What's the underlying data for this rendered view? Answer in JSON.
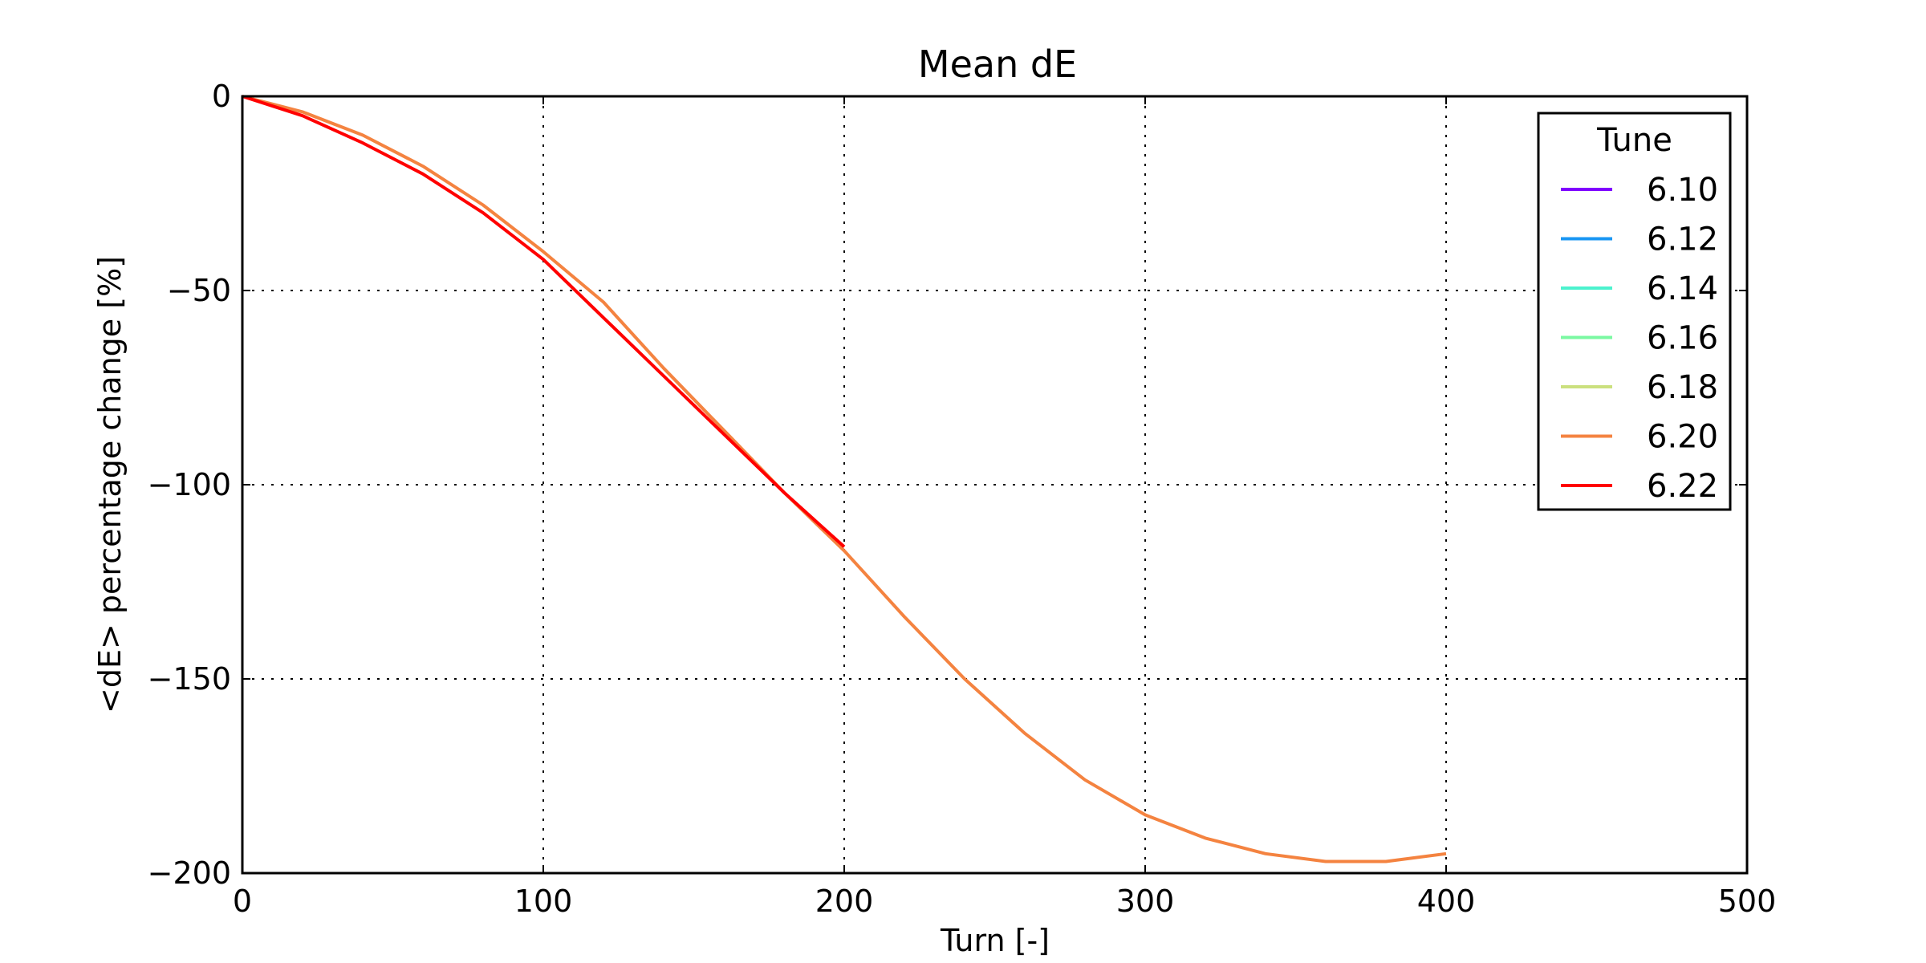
{
  "chart_data": {
    "type": "line",
    "title": "Mean dE",
    "xlabel": "Turn [-]",
    "ylabel": "<dE> percentage change [%]",
    "xlim": [
      0,
      500
    ],
    "ylim": [
      -200,
      0
    ],
    "xticks": [
      0,
      100,
      200,
      300,
      400,
      500
    ],
    "yticks": [
      0,
      -50,
      -100,
      -150,
      -200
    ],
    "xtick_labels": [
      "0",
      "100",
      "200",
      "300",
      "400",
      "500"
    ],
    "ytick_labels": [
      "0",
      "−50",
      "−100",
      "−150",
      "−200"
    ],
    "grid": true,
    "legend": {
      "title": "Tune",
      "placement": "top-right"
    },
    "series": [
      {
        "name": "6.10",
        "color": "#8000ff",
        "x": [],
        "y": []
      },
      {
        "name": "6.12",
        "color": "#1996f3",
        "x": [],
        "y": []
      },
      {
        "name": "6.14",
        "color": "#4cf2ce",
        "x": [],
        "y": []
      },
      {
        "name": "6.16",
        "color": "#7bf8a2",
        "x": [],
        "y": []
      },
      {
        "name": "6.18",
        "color": "#cbe07e",
        "x": [],
        "y": []
      },
      {
        "name": "6.20",
        "color": "#f48340",
        "x": [
          0,
          20,
          40,
          60,
          80,
          100,
          120,
          140,
          160,
          180,
          200,
          220,
          240,
          260,
          280,
          300,
          320,
          340,
          360,
          380,
          400
        ],
        "y": [
          0,
          -4,
          -10,
          -18,
          -28,
          -40,
          -53,
          -70,
          -86,
          -102,
          -117,
          -134,
          -150,
          -164,
          -176,
          -185,
          -191,
          -195,
          -197,
          -197,
          -195
        ]
      },
      {
        "name": "6.22",
        "color": "#ff0000",
        "x": [
          0,
          20,
          40,
          60,
          80,
          100,
          120,
          140,
          160,
          180,
          200
        ],
        "y": [
          0,
          -5,
          -12,
          -20,
          -30,
          -42,
          -57,
          -72,
          -87,
          -102,
          -116
        ]
      }
    ]
  }
}
